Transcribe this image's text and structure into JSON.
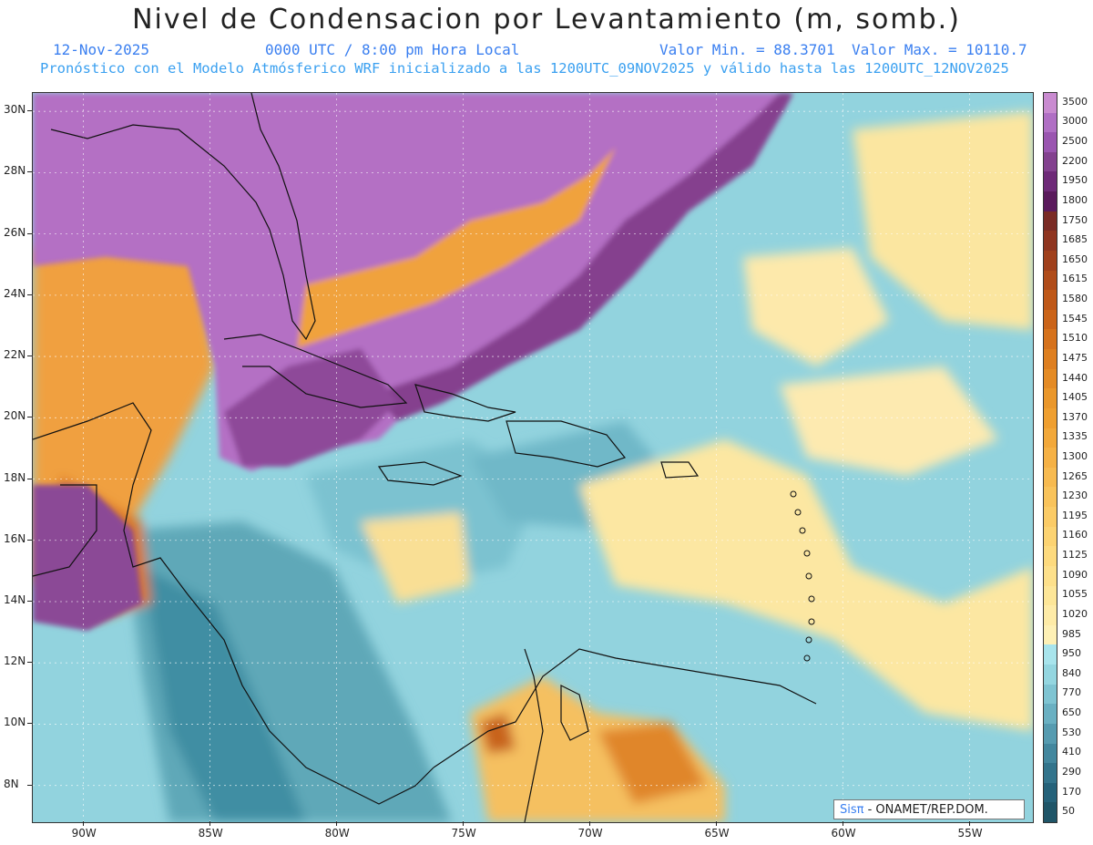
{
  "header": {
    "title": "Nivel de Condensacion por Levantamiento (m, somb.)",
    "date": "12-Nov-2025",
    "time": "0000 UTC / 8:00 pm Hora Local",
    "vmin": "Valor Min. = 88.3701",
    "vmax": "Valor Max. = 10110.7",
    "subtitle": "Pronóstico con el Modelo Atmósferico WRF inicializado a las 1200UTC_09NOV2025 y válido hasta las  1200UTC_12NOV2025"
  },
  "map": {
    "lon_range": [
      -92,
      -52.5
    ],
    "lat_range": [
      6.8,
      30.6
    ],
    "lon_labels": [
      "90W",
      "85W",
      "80W",
      "75W",
      "70W",
      "65W",
      "60W",
      "55W"
    ],
    "lon_values": [
      -90,
      -85,
      -80,
      -75,
      -70,
      -65,
      -60,
      -55
    ],
    "lat_labels": [
      "8N",
      "10N",
      "12N",
      "14N",
      "16N",
      "18N",
      "20N",
      "22N",
      "24N",
      "26N",
      "28N",
      "30N"
    ],
    "lat_values": [
      8,
      10,
      12,
      14,
      16,
      18,
      20,
      22,
      24,
      26,
      28,
      30
    ],
    "grid": true
  },
  "colorbar": {
    "labels": [
      "3500",
      "3000",
      "2500",
      "2200",
      "1950",
      "1800",
      "1750",
      "1685",
      "1650",
      "1615",
      "1580",
      "1545",
      "1510",
      "1475",
      "1440",
      "1405",
      "1370",
      "1335",
      "1300",
      "1265",
      "1230",
      "1195",
      "1160",
      "1125",
      "1090",
      "1055",
      "1020",
      "985",
      "950",
      "840",
      "770",
      "650",
      "530",
      "410",
      "290",
      "170",
      "50"
    ],
    "colors": [
      "#c98bd0",
      "#b06fc4",
      "#9a55b0",
      "#83418f",
      "#6e2a78",
      "#5a1a5c",
      "#7a2b25",
      "#8f3520",
      "#a0401c",
      "#b04c1a",
      "#bf5818",
      "#cb6419",
      "#d6721c",
      "#de7f20",
      "#e48b25",
      "#ea972b",
      "#ef9f30",
      "#f2a83a",
      "#f5b145",
      "#f7ba50",
      "#f9c35b",
      "#fbcb66",
      "#fcd372",
      "#fdda7e",
      "#fde08b",
      "#fde698",
      "#feeba7",
      "#fef0b5",
      "#a8e4ec",
      "#94d6e0",
      "#7fc4d2",
      "#6ab0c2",
      "#569bb0",
      "#43879e",
      "#33748c",
      "#25627a",
      "#1f5568"
    ]
  },
  "credit": {
    "brand": "Sisπ",
    "text": " -  ONAMET/REP.DOM."
  },
  "colors": {
    "title": "#222222",
    "info": "#3a7ff0",
    "grid": "#ffffff"
  }
}
